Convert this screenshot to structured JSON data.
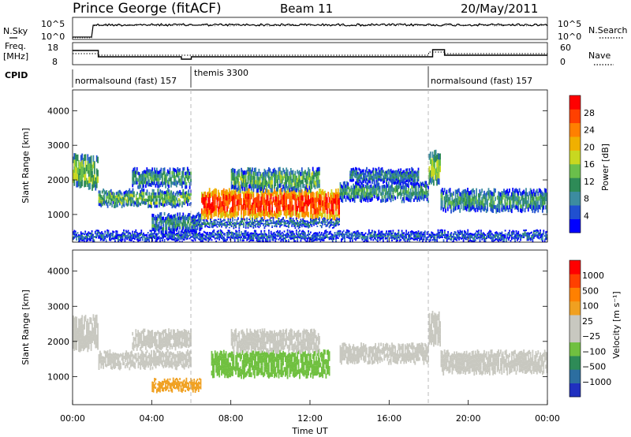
{
  "header": {
    "station": "Prince George (fitACF)",
    "beam": "Beam 11",
    "date": "20/May/2011"
  },
  "top_panel": {
    "left_label": "N.Sky",
    "right_label": "N.Search",
    "left_ticks": [
      "10^5",
      "10^0"
    ],
    "right_ticks": [
      "10^5",
      "10^0"
    ],
    "freq_label_1": "Freq.",
    "freq_label_2": "[MHz]",
    "freq_ticks": [
      "18",
      "8"
    ],
    "nave_label": "Nave",
    "nave_ticks": [
      "60",
      "0"
    ],
    "cpid_label": "CPID",
    "cpid_segments": [
      {
        "label": "normalsound (fast) 157",
        "start": "00:00",
        "end": "06:00"
      },
      {
        "label": "themis 3300",
        "start": "06:00",
        "end": "18:00"
      },
      {
        "label": "normalsound (fast) 157",
        "start": "18:00",
        "end": "24:00"
      }
    ]
  },
  "x_axis": {
    "label": "Time UT",
    "ticks": [
      "00:00",
      "04:00",
      "08:00",
      "12:00",
      "16:00",
      "20:00",
      "00:00"
    ]
  },
  "chart_data": [
    {
      "type": "heatmap",
      "name": "power",
      "ylabel": "Slant Range [km]",
      "y_ticks": [
        "4000",
        "3000",
        "2000",
        "1000"
      ],
      "xlim": [
        0,
        24
      ],
      "ylim": [
        200,
        4600
      ],
      "colorbar_label": "Power [dB]",
      "colorbar_ticks": [
        "28",
        "24",
        "20",
        "16",
        "12",
        "8",
        "4"
      ],
      "colorbar_colors": [
        "#0000ff",
        "#2050d0",
        "#3c8ca0",
        "#2e8b57",
        "#6abf4b",
        "#c8d820",
        "#f0b000",
        "#ff8000",
        "#ff4000",
        "#ff0000"
      ],
      "colorbar_range": [
        0,
        30
      ],
      "bands": [
        {
          "t0": 0.0,
          "t1": 1.3,
          "r0": 1750,
          "r1": 2700,
          "pwr": 14
        },
        {
          "t0": 1.3,
          "t1": 6.0,
          "r0": 1250,
          "r1": 1700,
          "pwr": 12
        },
        {
          "t0": 3.0,
          "t1": 6.0,
          "r0": 1800,
          "r1": 2300,
          "pwr": 10
        },
        {
          "t0": 4.0,
          "t1": 6.5,
          "r0": 500,
          "r1": 1000,
          "pwr": 9
        },
        {
          "t0": 6.5,
          "t1": 13.5,
          "r0": 900,
          "r1": 1700,
          "pwr": 26
        },
        {
          "t0": 8.0,
          "t1": 12.5,
          "r0": 1700,
          "r1": 2300,
          "pwr": 12
        },
        {
          "t0": 6.0,
          "t1": 13.5,
          "r0": 650,
          "r1": 850,
          "pwr": 8
        },
        {
          "t0": 13.5,
          "t1": 18.0,
          "r0": 1400,
          "r1": 1900,
          "pwr": 10
        },
        {
          "t0": 14.0,
          "t1": 17.5,
          "r0": 1900,
          "r1": 2300,
          "pwr": 8
        },
        {
          "t0": 18.0,
          "t1": 18.6,
          "r0": 1900,
          "r1": 2800,
          "pwr": 14
        },
        {
          "t0": 18.6,
          "t1": 24.0,
          "r0": 1100,
          "r1": 1700,
          "pwr": 10
        },
        {
          "t0": 0.0,
          "t1": 24.0,
          "r0": 250,
          "r1": 500,
          "pwr": 6
        }
      ]
    },
    {
      "type": "heatmap",
      "name": "velocity",
      "ylabel": "Slant Range [km]",
      "y_ticks": [
        "4000",
        "3000",
        "2000",
        "1000"
      ],
      "xlim": [
        0,
        24
      ],
      "ylim": [
        200,
        4600
      ],
      "colorbar_label": "Velocity [m s⁻¹]",
      "colorbar_ticks": [
        "1000",
        "500",
        "100",
        "25",
        "−25",
        "−100",
        "−500",
        "−1000"
      ],
      "colorbar_colors": [
        "#2030c0",
        "#2c6ea0",
        "#2e8b57",
        "#70c040",
        "#c8c8c0",
        "#c8c8c0",
        "#f0a020",
        "#ff8000",
        "#ff4000",
        "#ff0000"
      ],
      "bands": [
        {
          "t0": 0.0,
          "t1": 1.3,
          "r0": 1750,
          "r1": 2700,
          "v": 0
        },
        {
          "t0": 1.3,
          "t1": 6.0,
          "r0": 1250,
          "r1": 1700,
          "v": 0
        },
        {
          "t0": 3.0,
          "t1": 6.0,
          "r0": 1800,
          "r1": 2300,
          "v": 0
        },
        {
          "t0": 7.0,
          "t1": 13.0,
          "r0": 1000,
          "r1": 1700,
          "v": 120
        },
        {
          "t0": 8.0,
          "t1": 12.5,
          "r0": 1700,
          "r1": 2300,
          "v": 0
        },
        {
          "t0": 13.5,
          "t1": 18.0,
          "r0": 1400,
          "r1": 1900,
          "v": 0
        },
        {
          "t0": 18.0,
          "t1": 18.6,
          "r0": 1900,
          "r1": 2800,
          "v": 0
        },
        {
          "t0": 18.6,
          "t1": 24.0,
          "r0": 1100,
          "r1": 1700,
          "v": 0
        },
        {
          "t0": 4.0,
          "t1": 6.5,
          "r0": 600,
          "r1": 900,
          "v": -120
        }
      ]
    }
  ]
}
